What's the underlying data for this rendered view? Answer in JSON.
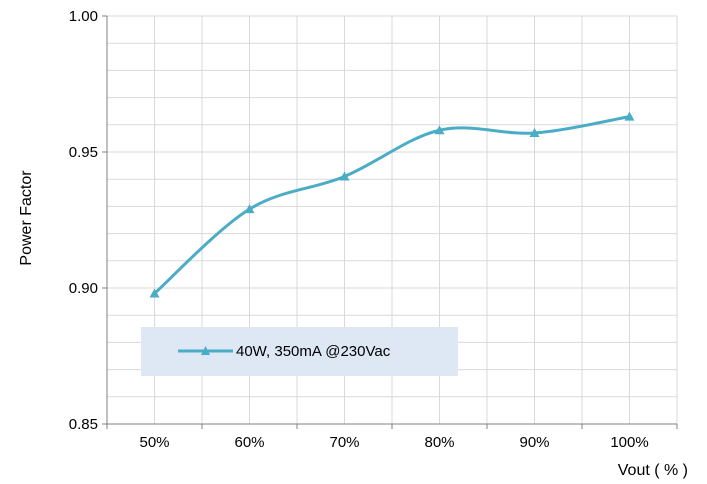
{
  "chart_data": {
    "type": "line",
    "title": "",
    "xlabel": "Vout ( % )",
    "ylabel": "Power Factor",
    "categories": [
      "50%",
      "60%",
      "70%",
      "80%",
      "90%",
      "100%"
    ],
    "series": [
      {
        "name": "40W, 350mA @230Vac",
        "values": [
          0.898,
          0.929,
          0.941,
          0.958,
          0.957,
          0.963
        ],
        "color": "#4bacc6",
        "marker": "triangle",
        "smooth": true
      }
    ],
    "ylim": [
      0.85,
      1.0
    ],
    "y_ticks": [
      "0.85",
      "0.90",
      "0.95",
      "1.00"
    ],
    "grid": true,
    "legend_position": "inside-lower-left"
  }
}
